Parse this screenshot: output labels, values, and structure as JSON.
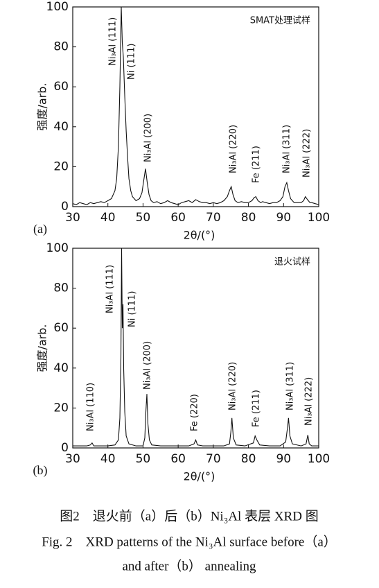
{
  "chart_data": [
    {
      "type": "line",
      "title": "SMAT处理试样",
      "panel_label": "(a)",
      "ylabel": "强度/arb.",
      "xlabel": "2θ/(°)",
      "color": "#111111",
      "xlim": [
        30,
        100
      ],
      "ylim": [
        0,
        100
      ],
      "xticks": [
        30,
        40,
        50,
        60,
        70,
        80,
        90,
        100
      ],
      "yticks": [
        0,
        20,
        40,
        60,
        80,
        100
      ],
      "x": [
        30,
        31,
        32,
        33,
        34,
        35,
        36,
        37,
        38,
        39,
        40,
        41,
        42,
        42.5,
        43,
        43.4,
        43.8,
        44.1,
        44.4,
        44.8,
        45.2,
        45.6,
        46,
        46.5,
        47,
        48,
        49,
        49.7,
        50.2,
        50.7,
        51.2,
        51.7,
        52.3,
        53,
        54,
        55,
        56,
        57,
        58,
        59,
        60,
        61,
        62,
        63,
        64,
        65,
        66,
        67,
        68,
        69,
        70,
        71,
        72,
        73,
        74,
        74.6,
        75.1,
        75.6,
        76.2,
        77,
        78,
        79,
        80,
        81,
        81.6,
        82.1,
        82.7,
        83.5,
        84,
        85,
        86,
        87,
        88,
        89,
        89.8,
        90.4,
        90.9,
        91.4,
        92,
        93,
        94,
        95,
        95.7,
        96.2,
        96.8,
        97.5,
        98,
        99,
        100
      ],
      "values": [
        1.5,
        1,
        2,
        1.5,
        1,
        2,
        1.5,
        2,
        2.5,
        2,
        3,
        4,
        8,
        14,
        30,
        60,
        100,
        82,
        75,
        55,
        38,
        25,
        14,
        8,
        5,
        3,
        4,
        7,
        13,
        19,
        12,
        6,
        3,
        2,
        2.5,
        1.5,
        2,
        3,
        2,
        1.5,
        1,
        2,
        2.5,
        3,
        2,
        3.5,
        2.5,
        2,
        2,
        1.5,
        2,
        1.5,
        2,
        3,
        5,
        8,
        10,
        6,
        3,
        2,
        2.5,
        2,
        2,
        3,
        4.5,
        5,
        3,
        2,
        2.5,
        2,
        1.5,
        2,
        2,
        3,
        5,
        10,
        12,
        8,
        4,
        2,
        2,
        2,
        3,
        5,
        3.5,
        2,
        2,
        1.5,
        1
      ],
      "annotations": [
        "Ni₃Al (111)",
        "Ni (111)",
        "Ni₃Al (200)",
        "Ni₃Al (220)",
        "Fe (211)",
        "Ni₃Al (311)",
        "Ni₃Al (222)"
      ]
    },
    {
      "type": "line",
      "title": "退火试样",
      "panel_label": "(b)",
      "ylabel": "强度/arb.",
      "xlabel": "2θ/(°)",
      "color": "#111111",
      "xlim": [
        30,
        100
      ],
      "ylim": [
        0,
        100
      ],
      "xticks": [
        30,
        40,
        50,
        60,
        70,
        80,
        90,
        100
      ],
      "yticks": [
        0,
        20,
        40,
        60,
        80,
        100
      ],
      "x": [
        30,
        32,
        34,
        35,
        35.5,
        36,
        38,
        40,
        42,
        43,
        43.4,
        43.7,
        43.9,
        44.1,
        44.3,
        44.5,
        44.8,
        45.2,
        46,
        48,
        50,
        50.5,
        50.8,
        51.1,
        51.4,
        51.8,
        52.5,
        55,
        58,
        61,
        63,
        64.5,
        65,
        65.5,
        67,
        70,
        73,
        74.6,
        75,
        75.3,
        75.7,
        76.5,
        79,
        81.4,
        81.9,
        82.4,
        83.2,
        86,
        89,
        90.6,
        91.1,
        91.4,
        91.8,
        92.5,
        95,
        96.4,
        96.9,
        97.3,
        98,
        100
      ],
      "values": [
        1,
        1,
        1,
        1.5,
        2.5,
        1,
        1,
        1,
        1.5,
        4,
        15,
        45,
        100,
        60,
        72,
        40,
        18,
        6,
        2,
        1,
        1,
        5,
        18,
        27,
        12,
        4,
        1.5,
        1,
        1,
        1,
        1,
        2,
        4,
        1.5,
        1,
        1,
        1,
        2,
        8,
        15,
        5,
        1.5,
        1,
        2.5,
        6,
        4,
        1.5,
        1,
        1,
        3,
        10,
        15,
        6,
        2,
        1,
        2,
        6.5,
        2,
        1,
        1
      ],
      "annotations": [
        "Ni₃Al (110)",
        "Ni₃Al (111)",
        "Ni (111)",
        "Ni₃Al (200)",
        "Fe (220)",
        "Ni₃Al (220)",
        "Fe (211)",
        "Ni₃Al (311)",
        "Ni₃Al (222)"
      ]
    }
  ],
  "caption": {
    "zh": "图2　退火前（a）后（b）Ni₃Al 表层 XRD 图",
    "en": [
      "Fig. 2　XRD patterns of the Ni₃Al surface before（a）",
      "and after（b） annealing"
    ]
  }
}
